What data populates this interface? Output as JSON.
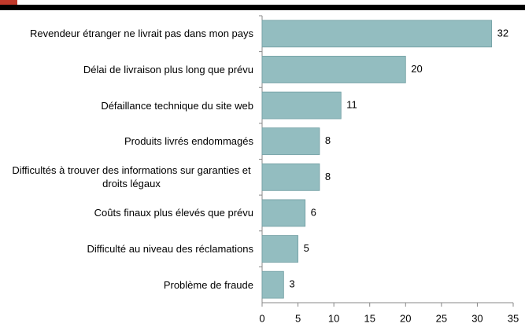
{
  "chart_data": {
    "type": "barh",
    "categories": [
      "Revendeur étranger ne livrait pas dans mon pays",
      "Délai de livraison plus long que prévu",
      "Défaillance technique du site web",
      "Produits livrés endommagés",
      "Difficultés à trouver des informations sur garanties et droits légaux",
      "Coûts finaux plus élevés que prévu",
      "Difficulté au niveau des réclamations",
      "Problème de fraude"
    ],
    "values": [
      32,
      20,
      11,
      8,
      8,
      6,
      5,
      3
    ],
    "color": "#93bdc0",
    "xlim": [
      0,
      35
    ],
    "xticks": [
      0,
      5,
      10,
      15,
      20,
      25,
      30,
      35
    ]
  }
}
